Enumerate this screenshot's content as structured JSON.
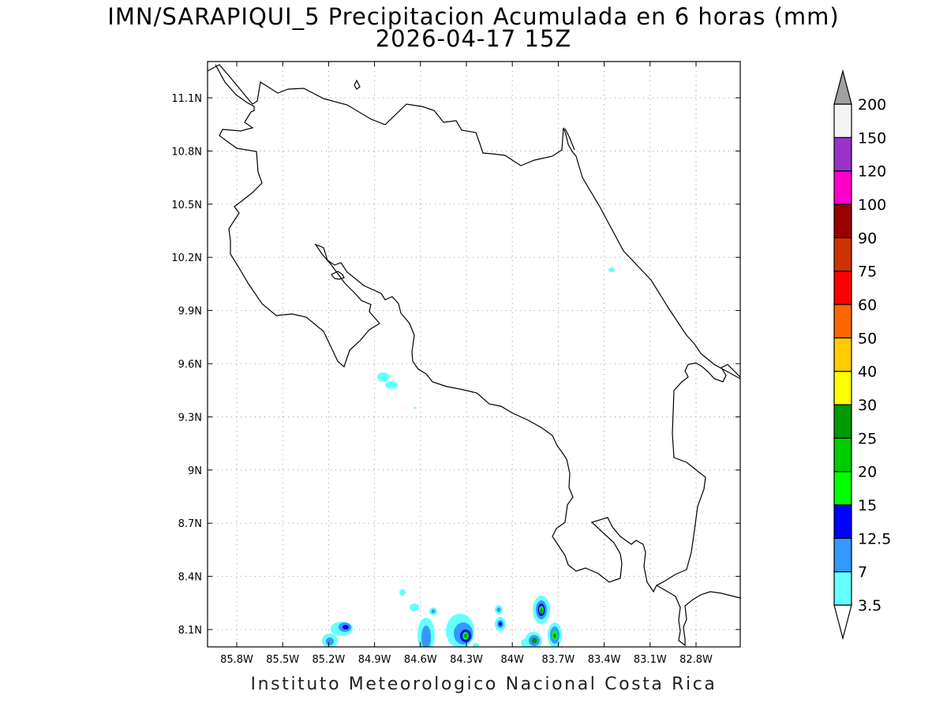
{
  "header": {
    "title_line1": "IMN/SARAPIQUI_5 Precipitacion Acumulada en 6 horas (mm)",
    "title_line2": "2026-04-17 15Z"
  },
  "footer": {
    "credit": "Instituto Meteorologico Nacional Costa Rica"
  },
  "map": {
    "lat_ticks": [
      "11.1N",
      "10.8N",
      "10.5N",
      "10.2N",
      "9.9N",
      "9.6N",
      "9.3N",
      "9N",
      "8.7N",
      "8.4N",
      "8.1N"
    ],
    "lon_ticks": [
      "85.8W",
      "85.5W",
      "85.2W",
      "84.9W",
      "84.6W",
      "84.3W",
      "84W",
      "83.7W",
      "83.4W",
      "83.1W",
      "82.8W"
    ],
    "gridlines": true
  },
  "colorbar": {
    "labels": [
      "3.5",
      "7",
      "12.5",
      "15",
      "20",
      "25",
      "30",
      "40",
      "50",
      "60",
      "75",
      "90",
      "100",
      "120",
      "150",
      "200"
    ],
    "colors": [
      "#66ffff",
      "#3399ff",
      "#0000ff",
      "#00ff00",
      "#00cc00",
      "#009900",
      "#ffff00",
      "#ffcc00",
      "#ff6600",
      "#ff0000",
      "#cc3300",
      "#990000",
      "#ff00cc",
      "#9933cc",
      "#f4f4f4",
      "#a0a0a0"
    ]
  }
}
